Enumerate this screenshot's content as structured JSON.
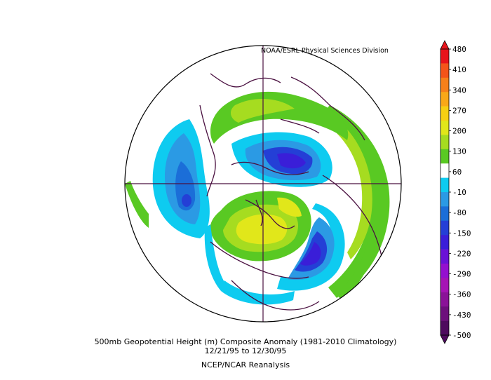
{
  "credit": "NOAA/ESRL Physical Sciences Division",
  "caption": {
    "line1": "500mb Geopotential Height (m) Composite Anomaly (1981-2010 Climatology)",
    "line2": "12/21/95  to 12/30/95",
    "line3": "NCEP/NCAR Reanalysis"
  },
  "colorbar": {
    "labels": [
      "480",
      "410",
      "340",
      "270",
      "200",
      "130",
      "60",
      "-10",
      "-80",
      "-150",
      "-220",
      "-290",
      "-360",
      "-430",
      "-500"
    ],
    "colors": [
      "#e8141b",
      "#f4541a",
      "#f7801a",
      "#f9a818",
      "#f6cf12",
      "#e1e71a",
      "#a6dc20",
      "#59c923",
      "#ffffff",
      "#0ecbf0",
      "#2b9ae4",
      "#1b6ed8",
      "#243fd6",
      "#3a1ed8",
      "#6a12d6",
      "#9410cf",
      "#a514b5",
      "#8a1298",
      "#6d0f7c",
      "#4e0b5e"
    ]
  },
  "anomaly_regions": [
    {
      "name": "north-atlantic-negative-anomaly",
      "level": "-220"
    },
    {
      "name": "eastern-us-negative-anomaly",
      "level": "-220"
    },
    {
      "name": "arctic-siberia-negative-anomaly",
      "level": "-150"
    },
    {
      "name": "canada-positive-anomaly",
      "level": "200"
    },
    {
      "name": "eurasia-positive-anomaly",
      "level": "130"
    }
  ]
}
